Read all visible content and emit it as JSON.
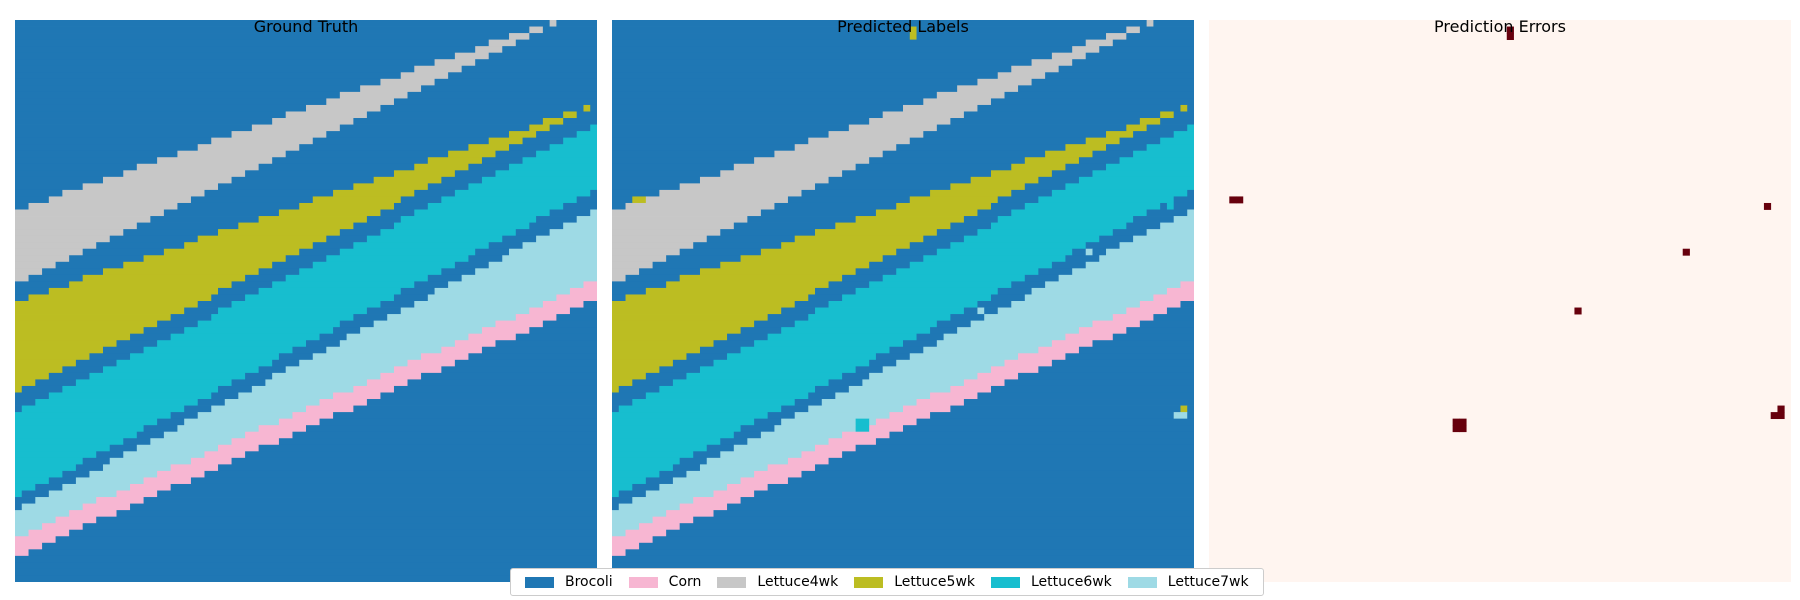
{
  "chart_data": {
    "type": "heatmap",
    "grid_size": 86,
    "classes": [
      {
        "name": "Brocoli",
        "color": "#1f77b4"
      },
      {
        "name": "Corn",
        "color": "#f7b6d2"
      },
      {
        "name": "Lettuce4wk",
        "color": "#c7c7c7"
      },
      {
        "name": "Lettuce5wk",
        "color": "#bcbd22"
      },
      {
        "name": "Lettuce6wk",
        "color": "#17becf"
      },
      {
        "name": "Lettuce7wk",
        "color": "#9edae5"
      }
    ],
    "panels": [
      {
        "title": "Ground Truth"
      },
      {
        "title": "Predicted Labels"
      },
      {
        "title": "Prediction Errors"
      }
    ],
    "band_pattern": [
      0,
      2,
      0,
      3,
      0,
      4,
      0,
      5,
      1,
      0
    ],
    "band_boundaries_at_left_edge": [
      29,
      40,
      43,
      57,
      60,
      73,
      75,
      79,
      82,
      84
    ],
    "band_boundaries_at_right_edge": [
      -2,
      -2,
      13,
      13,
      16,
      26,
      29,
      40,
      43,
      70
    ],
    "prediction_errors": [
      {
        "row": 1,
        "col": 44,
        "predicted": 3
      },
      {
        "row": 2,
        "col": 44,
        "predicted": 3
      },
      {
        "row": 27,
        "col": 3,
        "predicted": 3
      },
      {
        "row": 27,
        "col": 4,
        "predicted": 3
      },
      {
        "row": 28,
        "col": 82,
        "predicted": 4
      },
      {
        "row": 35,
        "col": 70,
        "predicted": 5
      },
      {
        "row": 44,
        "col": 54,
        "predicted": 5
      },
      {
        "row": 59,
        "col": 84,
        "predicted": 3
      },
      {
        "row": 60,
        "col": 83,
        "predicted": 5
      },
      {
        "row": 60,
        "col": 84,
        "predicted": 5
      },
      {
        "row": 61,
        "col": 36,
        "predicted": 4
      },
      {
        "row": 61,
        "col": 37,
        "predicted": 4
      },
      {
        "row": 62,
        "col": 36,
        "predicted": 4
      },
      {
        "row": 62,
        "col": 37,
        "predicted": 4
      }
    ],
    "error_colors": {
      "correct": "#fff5f0",
      "error": "#67000d"
    },
    "legend_location": "lower-center"
  }
}
